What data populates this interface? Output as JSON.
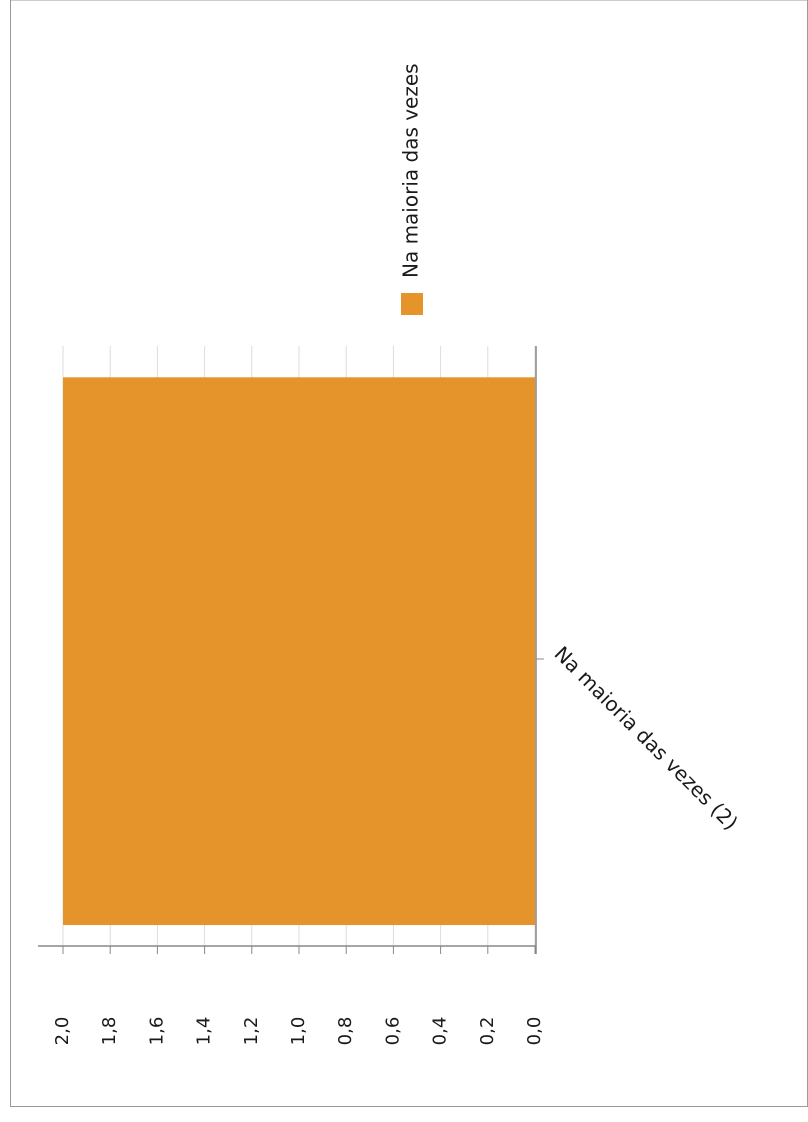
{
  "chart_data": {
    "type": "bar",
    "orientation": "vertical",
    "rotated": "90deg-clockwise",
    "categories": [
      "Na maioria das vezes (2)"
    ],
    "series": [
      {
        "name": "Na maioria das vezes",
        "values": [
          2.0
        ],
        "color": "#e5942b"
      }
    ],
    "ylim": [
      0,
      2.0
    ],
    "yticks": [
      "0,0",
      "0,2",
      "0,4",
      "0,6",
      "0,8",
      "1,0",
      "1,2",
      "1,4",
      "1,6",
      "1,8",
      "2,0"
    ],
    "grid": true,
    "legend_position": "top-right",
    "title": "",
    "xlabel": "",
    "ylabel": ""
  }
}
